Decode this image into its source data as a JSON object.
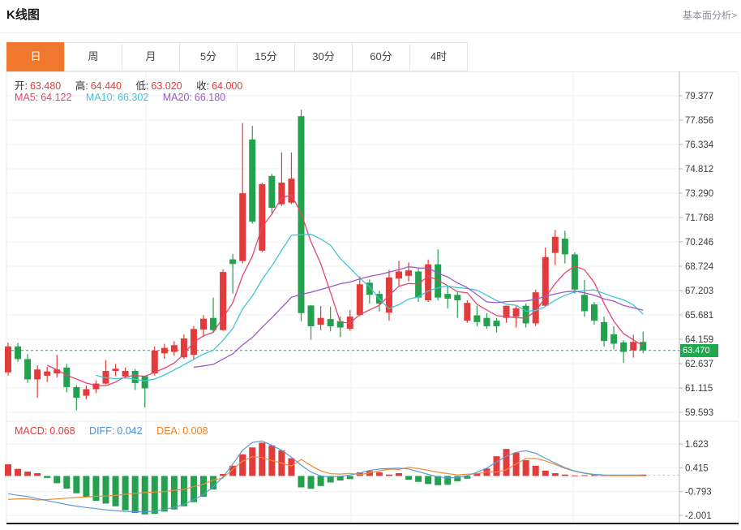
{
  "header": {
    "title": "K线图",
    "fundamental_link": "基本面分析>"
  },
  "tabs": {
    "items": [
      "日",
      "周",
      "月",
      "5分",
      "15分",
      "30分",
      "60分",
      "4时"
    ],
    "active_index": 0
  },
  "legend": {
    "ohlc": {
      "open_label": "开:",
      "open": "63.480",
      "high_label": "高:",
      "high": "64.440",
      "low_label": "低:",
      "low": "63.020",
      "close_label": "收:",
      "close": "64.000"
    },
    "ma": {
      "ma5_label": "MA5:",
      "ma5": "64.122",
      "ma10_label": "MA10:",
      "ma10": "66.302",
      "ma20_label": "MA20:",
      "ma20": "66.180"
    },
    "macd": {
      "macd_label": "MACD:",
      "macd": "0.068",
      "diff_label": "DIFF:",
      "diff": "0.042",
      "dea_label": "DEA:",
      "dea": "0.008"
    }
  },
  "price_marker": {
    "value": "63.470",
    "numeric": 63.47
  },
  "colors": {
    "up": "#e23b3b",
    "down": "#23a14e",
    "badge": "#1fa94e",
    "ma5": "#e5466e",
    "ma10": "#3ec6d9",
    "ma20": "#9b59c8",
    "diff_line": "#5b9bd5",
    "dea_line": "#ef8c3a",
    "grid": "#f1f1f1",
    "axis": "#b9b9b9",
    "panel_border": "#e8e8e8",
    "bottom_border": "#1a1a1a",
    "dashed_price": "#2aa552",
    "dashed_zero": "#a9cdeb",
    "tab_active_bg": "#f0782e"
  },
  "chart_data": {
    "type": "candlestick+macd",
    "title": "K线图 (daily K-line with MA5/MA10/MA20 and MACD)",
    "main": {
      "yticks": [
        79.377,
        77.856,
        76.334,
        74.812,
        73.29,
        71.768,
        70.246,
        68.724,
        67.203,
        65.681,
        64.159,
        62.637,
        61.115,
        59.593
      ],
      "last_price": 63.47,
      "ma_periods": [
        5,
        10,
        20
      ],
      "candles": [
        [
          62.1,
          63.96,
          61.9,
          63.72
        ],
        [
          63.72,
          63.93,
          62.75,
          62.93
        ],
        [
          62.93,
          63.24,
          61.45,
          61.66
        ],
        [
          61.66,
          62.54,
          60.51,
          62.28
        ],
        [
          61.89,
          62.45,
          61.5,
          62.16
        ],
        [
          62.03,
          63.2,
          61.78,
          62.28
        ],
        [
          62.4,
          62.63,
          60.85,
          61.18
        ],
        [
          61.18,
          61.3,
          59.74,
          60.51
        ],
        [
          60.64,
          61.27,
          60.43,
          61.05
        ],
        [
          61.05,
          61.6,
          60.8,
          61.4
        ],
        [
          61.4,
          62.87,
          61.35,
          62.19
        ],
        [
          62.19,
          62.62,
          61.86,
          62.33
        ],
        [
          61.85,
          62.4,
          61.7,
          62.19
        ],
        [
          62.19,
          62.3,
          61.0,
          61.43
        ],
        [
          61.86,
          61.9,
          59.91,
          61.1
        ],
        [
          62.03,
          63.72,
          61.9,
          63.46
        ],
        [
          63.29,
          63.88,
          62.95,
          63.63
        ],
        [
          63.38,
          64.05,
          63.13,
          63.8
        ],
        [
          63.04,
          64.47,
          62.95,
          64.22
        ],
        [
          63.2,
          64.98,
          62.87,
          64.81
        ],
        [
          64.77,
          65.67,
          64.31,
          65.45
        ],
        [
          65.5,
          66.77,
          64.6,
          64.74
        ],
        [
          64.74,
          68.54,
          64.7,
          68.37
        ],
        [
          69.16,
          69.5,
          67.02,
          68.87
        ],
        [
          69.05,
          77.67,
          68.9,
          73.29
        ],
        [
          76.65,
          77.5,
          71.4,
          71.51
        ],
        [
          69.7,
          73.95,
          69.6,
          73.86
        ],
        [
          74.37,
          74.5,
          72.0,
          72.38
        ],
        [
          72.6,
          75.84,
          72.5,
          73.95
        ],
        [
          72.7,
          75.84,
          72.6,
          74.2
        ],
        [
          78.1,
          78.5,
          65.3,
          65.8
        ],
        [
          66.28,
          66.3,
          64.14,
          64.98
        ],
        [
          65.07,
          66.25,
          64.73,
          65.5
        ],
        [
          65.43,
          66.2,
          64.66,
          64.98
        ],
        [
          65.3,
          65.6,
          64.3,
          64.9
        ],
        [
          64.82,
          66.0,
          64.7,
          65.58
        ],
        [
          65.68,
          68.1,
          65.6,
          67.6
        ],
        [
          67.7,
          67.9,
          66.4,
          66.95
        ],
        [
          67.0,
          67.2,
          65.9,
          66.4
        ],
        [
          65.83,
          68.5,
          65.33,
          68.03
        ],
        [
          67.96,
          69.06,
          67.5,
          68.4
        ],
        [
          68.13,
          68.97,
          67.78,
          68.47
        ],
        [
          68.4,
          68.6,
          66.5,
          66.77
        ],
        [
          66.6,
          69.15,
          66.5,
          68.85
        ],
        [
          68.85,
          69.78,
          66.6,
          66.77
        ],
        [
          67.0,
          67.5,
          66.1,
          66.7
        ],
        [
          66.94,
          67.1,
          65.5,
          66.6
        ],
        [
          65.33,
          66.6,
          65.2,
          66.44
        ],
        [
          65.66,
          66.26,
          64.98,
          65.24
        ],
        [
          65.5,
          65.8,
          64.82,
          64.98
        ],
        [
          65.33,
          65.5,
          64.6,
          64.98
        ],
        [
          65.5,
          66.26,
          65.2,
          66.26
        ],
        [
          65.58,
          66.3,
          64.9,
          66.1
        ],
        [
          66.26,
          66.4,
          64.9,
          65.16
        ],
        [
          65.16,
          67.27,
          65.0,
          67.1
        ],
        [
          66.26,
          69.9,
          66.2,
          69.3
        ],
        [
          69.56,
          71.0,
          68.8,
          70.57
        ],
        [
          70.45,
          70.95,
          68.9,
          69.47
        ],
        [
          69.47,
          69.6,
          67.02,
          67.27
        ],
        [
          66.94,
          67.87,
          65.58,
          65.92
        ],
        [
          66.35,
          66.5,
          65.07,
          65.33
        ],
        [
          65.24,
          65.58,
          63.72,
          64.06
        ],
        [
          64.48,
          64.98,
          63.55,
          63.89
        ],
        [
          63.97,
          64.1,
          62.7,
          63.38
        ],
        [
          63.48,
          64.44,
          63.02,
          64.0
        ],
        [
          64.0,
          64.65,
          63.3,
          63.47
        ]
      ]
    },
    "macd": {
      "yticks": [
        1.623,
        0.415,
        -0.793,
        -2.001
      ],
      "hist": [
        0.59,
        0.36,
        0.22,
        0.14,
        -0.1,
        -0.37,
        -0.64,
        -0.88,
        -1.06,
        -1.26,
        -1.4,
        -1.54,
        -1.74,
        -1.88,
        -1.95,
        -1.92,
        -1.81,
        -1.7,
        -1.54,
        -1.33,
        -1.06,
        -0.69,
        0.1,
        0.52,
        1.1,
        1.45,
        1.69,
        1.55,
        1.3,
        0.9,
        -0.58,
        -0.65,
        -0.51,
        -0.33,
        -0.23,
        -0.16,
        0.18,
        0.25,
        0.18,
        0.07,
        0.14,
        -0.19,
        -0.3,
        -0.41,
        -0.47,
        -0.44,
        -0.27,
        -0.14,
        0.14,
        0.38,
        1.0,
        1.37,
        1.18,
        0.8,
        0.52,
        0.27,
        0.14,
        0.07,
        0.03,
        0.04,
        0.05,
        0.04,
        0.05,
        0.04,
        0.05,
        0.068
      ],
      "diff": [
        -0.9,
        -0.98,
        -1.05,
        -1.15,
        -1.25,
        -1.35,
        -1.45,
        -1.53,
        -1.6,
        -1.66,
        -1.72,
        -1.76,
        -1.8,
        -1.82,
        -1.82,
        -1.78,
        -1.7,
        -1.58,
        -1.45,
        -1.2,
        -0.95,
        -0.55,
        -0.05,
        0.6,
        1.3,
        1.7,
        1.78,
        1.55,
        1.3,
        0.95,
        0.55,
        0.2,
        0.0,
        -0.05,
        -0.02,
        0.05,
        0.15,
        0.28,
        0.35,
        0.38,
        0.4,
        0.35,
        0.22,
        0.08,
        -0.05,
        -0.1,
        -0.08,
        0.02,
        0.18,
        0.4,
        0.7,
        1.0,
        1.2,
        1.28,
        1.15,
        0.9,
        0.65,
        0.42,
        0.25,
        0.15,
        0.08,
        0.05,
        0.04,
        0.04,
        0.042,
        0.042
      ]
    }
  }
}
